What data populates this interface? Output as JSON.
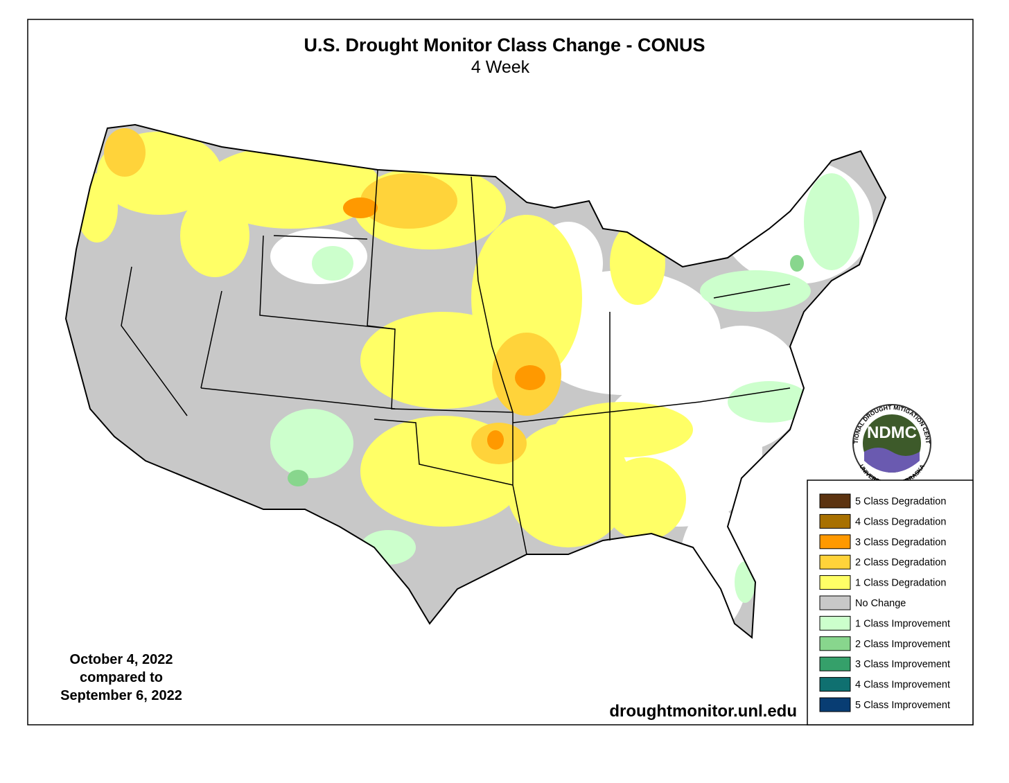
{
  "title": "U.S. Drought Monitor Class Change - CONUS",
  "subtitle": "4 Week",
  "date_note": [
    "October 4, 2022",
    "compared to",
    "September 6, 2022"
  ],
  "source": "droughtmonitor.unl.edu",
  "logo": {
    "abbr": "NDMC",
    "arc_top": "NATIONAL DROUGHT MITIGATION CENTER",
    "arc_bottom": "UNIVERSITY OF NEBRASKA"
  },
  "legend": {
    "items": [
      {
        "label": "5 Class Degradation",
        "color": "#5c3310"
      },
      {
        "label": "4 Class Degradation",
        "color": "#a87000"
      },
      {
        "label": "3 Class Degradation",
        "color": "#ff9900"
      },
      {
        "label": "2 Class Degradation",
        "color": "#ffd33a"
      },
      {
        "label": "1 Class Degradation",
        "color": "#ffff66"
      },
      {
        "label": "No Change",
        "color": "#c8c8c8"
      },
      {
        "label": "1 Class Improvement",
        "color": "#ccffcc"
      },
      {
        "label": "2 Class Improvement",
        "color": "#88d68d"
      },
      {
        "label": "3 Class Improvement",
        "color": "#35a06a"
      },
      {
        "label": "4 Class Improvement",
        "color": "#0f7070"
      },
      {
        "label": "5 Class Improvement",
        "color": "#083d73"
      }
    ]
  }
}
